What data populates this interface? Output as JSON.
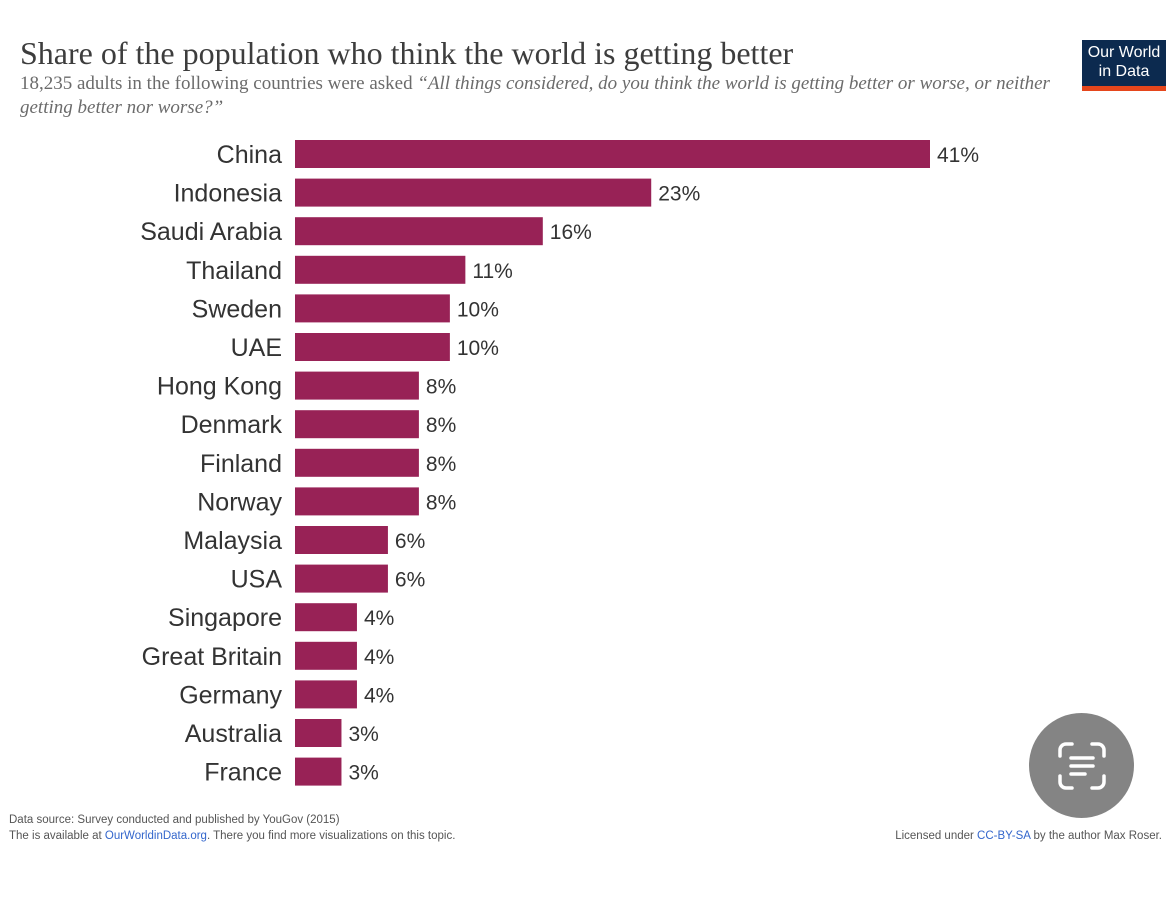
{
  "title": "Share of the population who think the world is getting better",
  "subtitle_plain": "18,235 adults in the following countries were asked ",
  "subtitle_quote": "“All things considered, do you think the world is getting better or worse, or neither getting better nor worse?”",
  "logo": {
    "line1": "Our World",
    "line2": "in Data",
    "bg_color": "#0c2a4f",
    "accent_color": "#e5461c"
  },
  "chart_data": {
    "type": "bar",
    "orientation": "horizontal",
    "title": "Share of the population who think the world is getting better",
    "categories": [
      "China",
      "Indonesia",
      "Saudi Arabia",
      "Thailand",
      "Sweden",
      "UAE",
      "Hong Kong",
      "Denmark",
      "Finland",
      "Norway",
      "Malaysia",
      "USA",
      "Singapore",
      "Great Britain",
      "Germany",
      "Australia",
      "France"
    ],
    "values": [
      41,
      23,
      16,
      11,
      10,
      10,
      8,
      8,
      8,
      8,
      6,
      6,
      4,
      4,
      4,
      3,
      3
    ],
    "labels": [
      "41%",
      "23%",
      "16%",
      "11%",
      "10%",
      "10%",
      "8%",
      "8%",
      "8%",
      "8%",
      "6%",
      "6%",
      "4%",
      "4%",
      "4%",
      "3%",
      "3%"
    ],
    "unit": "%",
    "xlim": [
      0,
      41
    ],
    "bar_color": "#982256",
    "grid": false,
    "legend": "none"
  },
  "footer": {
    "source": "Data source: Survey conducted and published by YouGov (2015)",
    "available_prefix": "The is available at ",
    "available_link": "OurWorldinData.org",
    "available_suffix": ". There you find more visualizations on this topic.",
    "license_prefix": "Licensed under ",
    "license_link": "CC-BY-SA",
    "license_suffix": " by the author Max Roser."
  },
  "scan_button": {
    "icon": "text-scan-icon"
  }
}
